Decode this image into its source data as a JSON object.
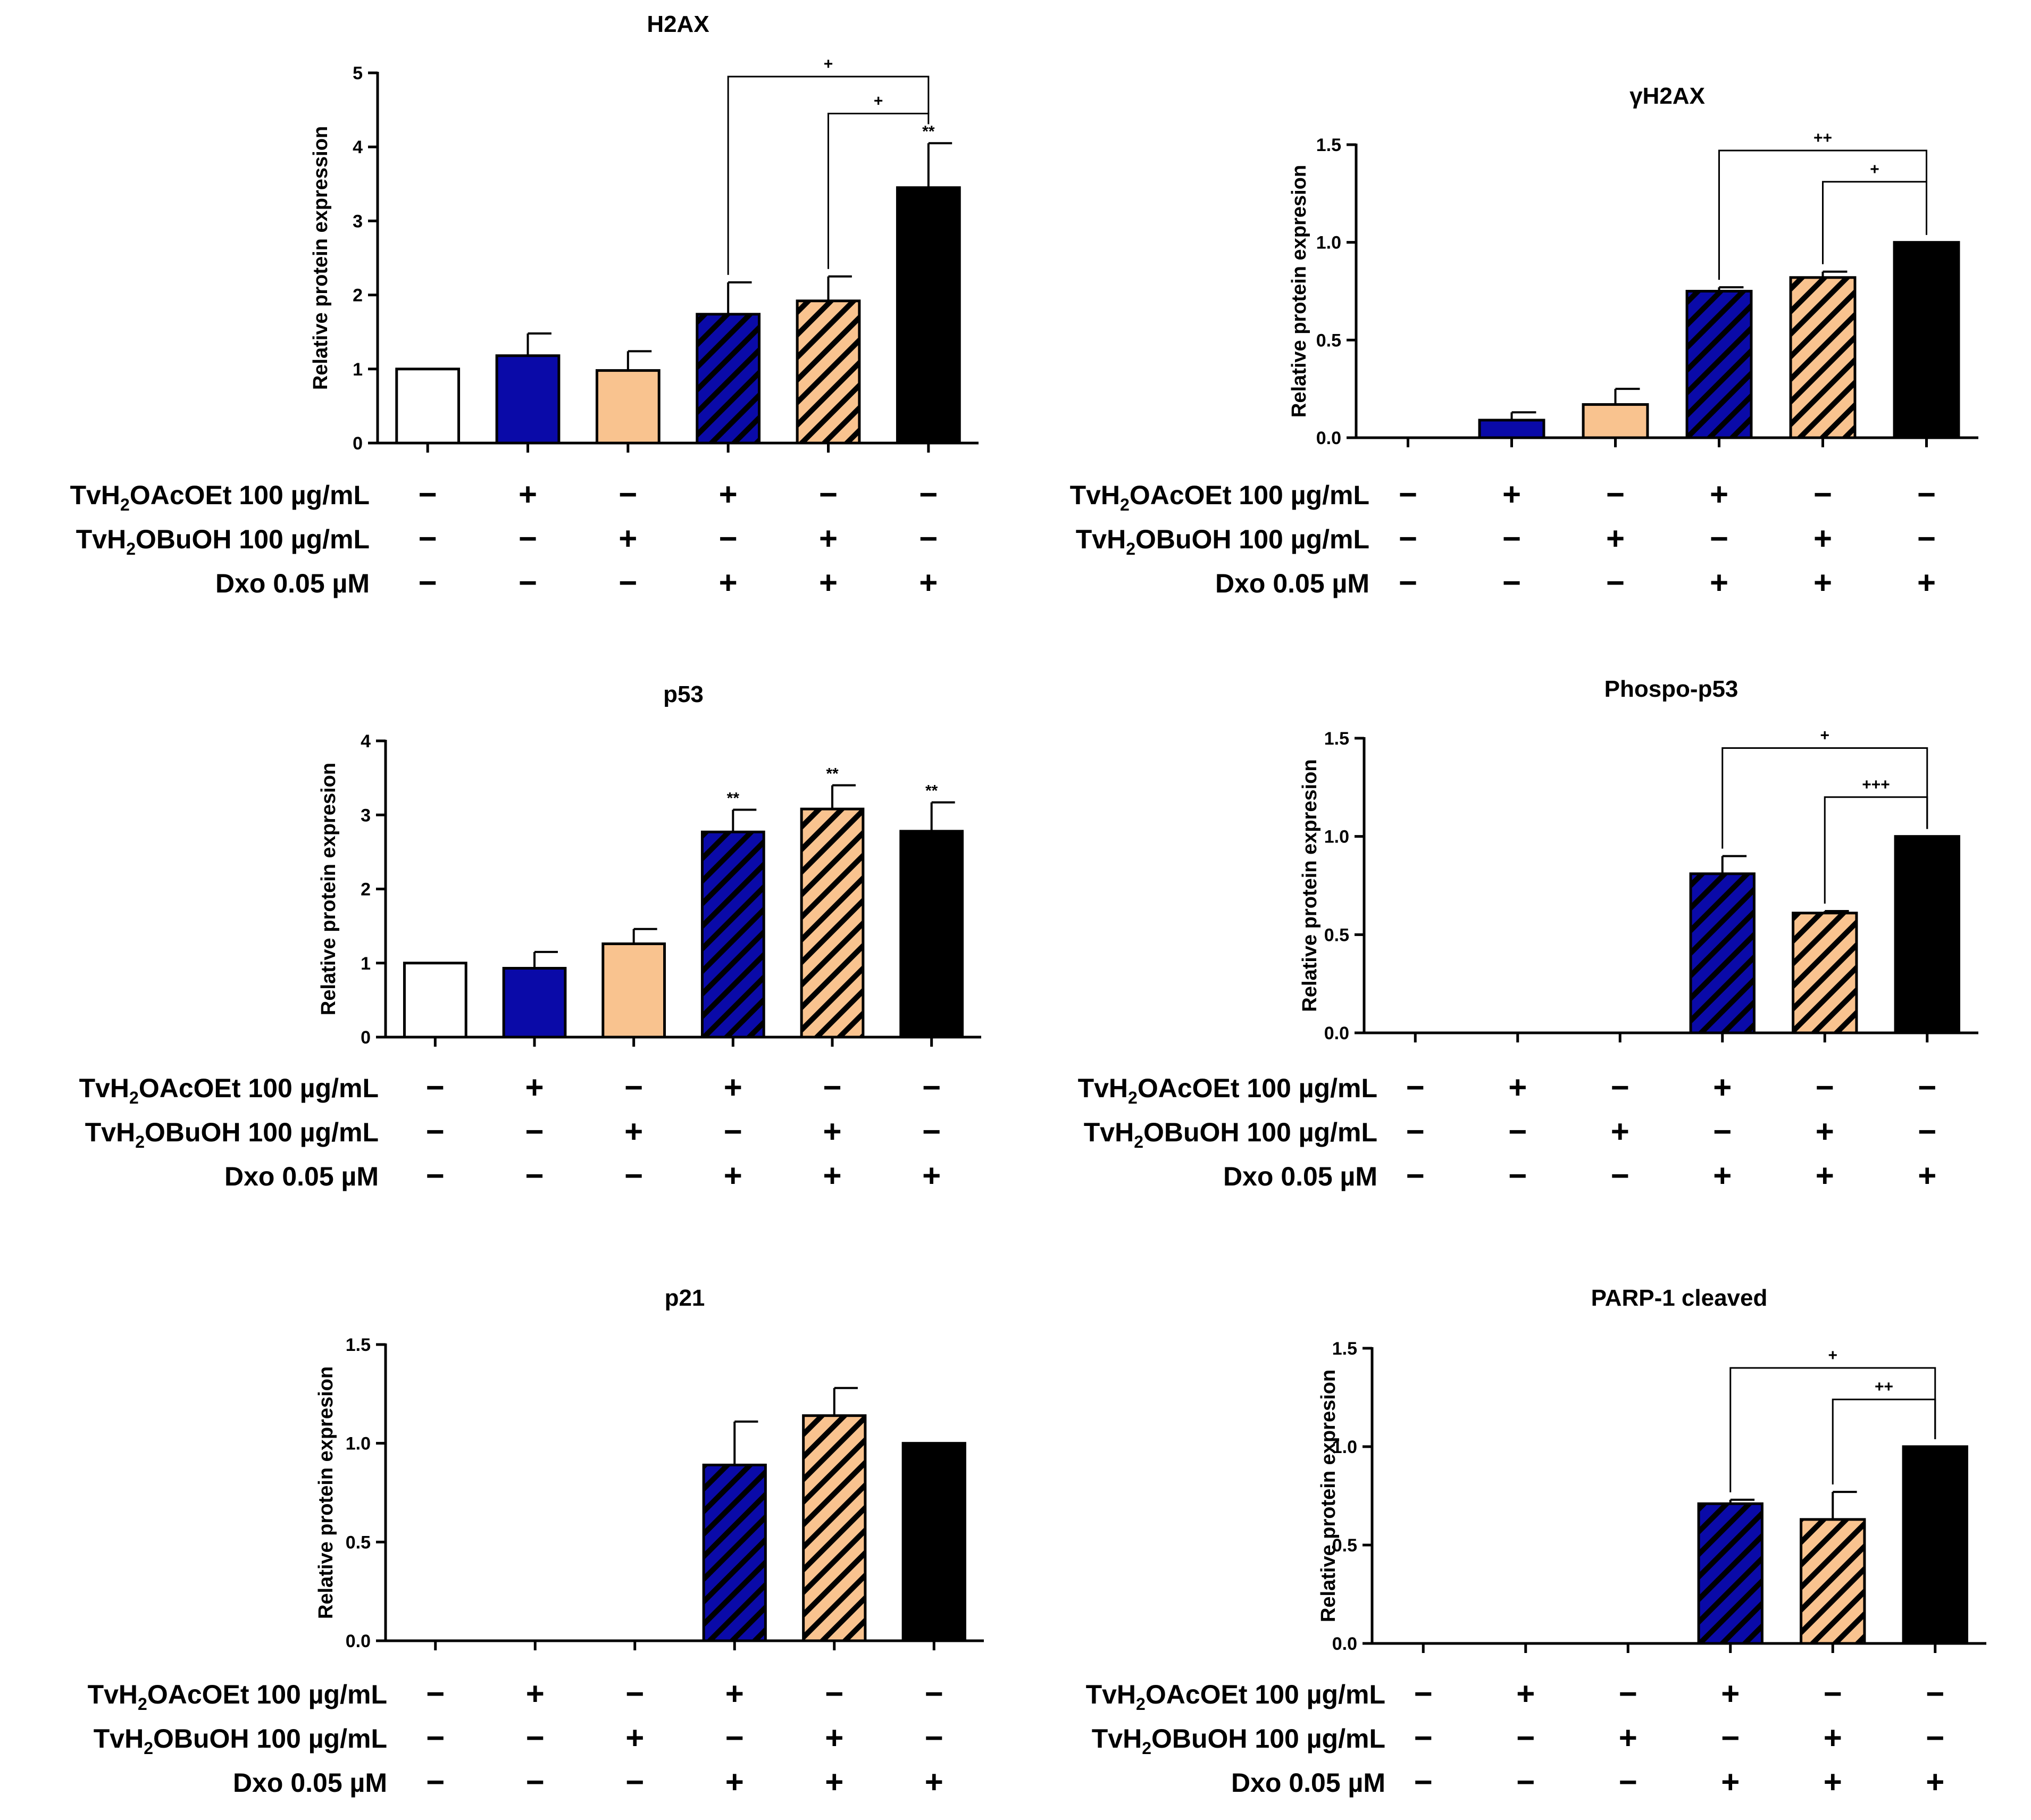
{
  "legend": {
    "row_labels": [
      {
        "prefix": "TvH",
        "sub": "2",
        "suffix": "OAcOEt 100 µg/mL"
      },
      {
        "prefix": "TvH",
        "sub": "2",
        "suffix": "OBuOH 100 µg/mL"
      },
      {
        "prefix": "Dxo 0.05 µM",
        "sub": "",
        "suffix": ""
      }
    ],
    "rows": [
      [
        "−",
        "+",
        "−",
        "+",
        "−",
        "−"
      ],
      [
        "−",
        "−",
        "+",
        "−",
        "+",
        "−"
      ],
      [
        "−",
        "−",
        "−",
        "+",
        "+",
        "+"
      ]
    ]
  },
  "colors": {
    "control": "#ffffff",
    "acoet": "#0a0aa8",
    "buoh": "#f9c38f",
    "dxo": "#000000",
    "hatch": "#000000"
  },
  "chart_data": [
    {
      "type": "bar",
      "title": "H2AX",
      "ylabel": "Relative protein expression",
      "ylim": [
        0,
        5
      ],
      "yticks": [
        "0",
        "1",
        "2",
        "3",
        "4",
        "5"
      ],
      "values": [
        1.0,
        1.18,
        0.98,
        1.74,
        1.92,
        3.45
      ],
      "errors": [
        0,
        0.3,
        0.26,
        0.43,
        0.33,
        0.6
      ],
      "bar_labels": [
        "",
        "",
        "",
        "",
        "",
        "**"
      ],
      "brackets": [
        {
          "from": 3,
          "to": 5,
          "label": "+",
          "y": 4.95
        },
        {
          "from": 4,
          "to": 5,
          "label": "+",
          "y": 4.45
        }
      ]
    },
    {
      "type": "bar",
      "title": "γH2AX",
      "ylabel": "Relative protein expresion",
      "ylim": [
        0,
        1.5
      ],
      "yticks": [
        "0.0",
        "0.5",
        "1.0",
        "1.5"
      ],
      "values": [
        0,
        0.09,
        0.17,
        0.75,
        0.82,
        1.0
      ],
      "errors": [
        0,
        0.04,
        0.08,
        0.02,
        0.03,
        0
      ],
      "bar_labels": [
        "",
        "",
        "",
        "",
        "",
        ""
      ],
      "brackets": [
        {
          "from": 3,
          "to": 5,
          "label": "++",
          "y": 1.47
        },
        {
          "from": 4,
          "to": 5,
          "label": "+",
          "y": 1.31
        }
      ]
    },
    {
      "type": "bar",
      "title": "p53",
      "ylabel": "Relative protein expresion",
      "ylim": [
        0,
        4
      ],
      "yticks": [
        "0",
        "1",
        "2",
        "3",
        "4"
      ],
      "values": [
        1.0,
        0.93,
        1.26,
        2.77,
        3.08,
        2.78
      ],
      "errors": [
        0,
        0.22,
        0.2,
        0.3,
        0.32,
        0.39
      ],
      "bar_labels": [
        "",
        "",
        "",
        "**",
        "**",
        "**"
      ],
      "brackets": []
    },
    {
      "type": "bar",
      "title": "Phospo-p53",
      "ylabel": "Relative protein expresion",
      "ylim": [
        0,
        1.5
      ],
      "yticks": [
        "0.0",
        "0.5",
        "1.0",
        "1.5"
      ],
      "values": [
        0,
        0,
        0,
        0.81,
        0.61,
        1.0
      ],
      "errors": [
        0,
        0,
        0,
        0.09,
        0.01,
        0
      ],
      "bar_labels": [
        "",
        "",
        "",
        "",
        "",
        ""
      ],
      "brackets": [
        {
          "from": 3,
          "to": 5,
          "label": "+",
          "y": 1.45
        },
        {
          "from": 4,
          "to": 5,
          "label": "+++",
          "y": 1.2
        }
      ]
    },
    {
      "type": "bar",
      "title": "p21",
      "ylabel": "Relative protein expresion",
      "ylim": [
        0,
        1.5
      ],
      "yticks": [
        "0.0",
        "0.5",
        "1.0",
        "1.5"
      ],
      "values": [
        0,
        0,
        0,
        0.89,
        1.14,
        1.0
      ],
      "errors": [
        0,
        0,
        0,
        0.22,
        0.14,
        0
      ],
      "bar_labels": [
        "",
        "",
        "",
        "",
        "",
        ""
      ],
      "brackets": []
    },
    {
      "type": "bar",
      "title": "PARP-1 cleaved",
      "ylabel": "Relative protein expresion",
      "ylim": [
        0,
        1.5
      ],
      "yticks": [
        "0.0",
        "0.5",
        "1.0",
        "1.5"
      ],
      "values": [
        0,
        0,
        0,
        0.71,
        0.63,
        1.0
      ],
      "errors": [
        0,
        0,
        0,
        0.02,
        0.14,
        0
      ],
      "bar_labels": [
        "",
        "",
        "",
        "",
        "",
        ""
      ],
      "brackets": [
        {
          "from": 3,
          "to": 5,
          "label": "+",
          "y": 1.4
        },
        {
          "from": 4,
          "to": 5,
          "label": "++",
          "y": 1.24
        }
      ]
    }
  ]
}
